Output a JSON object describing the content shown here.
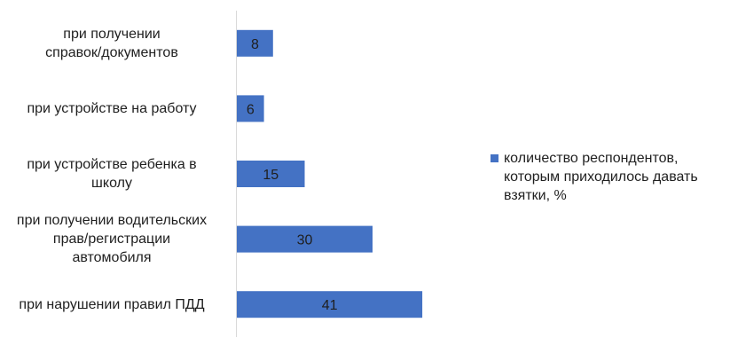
{
  "chart_data": {
    "type": "bar",
    "orientation": "horizontal",
    "categories": [
      "при получении\nсправок/документов",
      "при устройстве на работу",
      "при устройстве ребенка в\nшколу",
      "при получении водительских\nправ/регистрации\nавтомобиля",
      "при нарушении правил ПДД"
    ],
    "series": [
      {
        "name": "количество респондентов,\nкоторым приходилось давать\nвзятки, %",
        "values": [
          8,
          6,
          15,
          30,
          41
        ],
        "color": "#4472c4"
      }
    ],
    "data_labels": [
      "8",
      "6",
      "15",
      "30",
      "41"
    ],
    "xlim": [
      0,
      45
    ],
    "title": "",
    "xlabel": "",
    "ylabel": "",
    "grid": false,
    "legend_position": "right"
  }
}
